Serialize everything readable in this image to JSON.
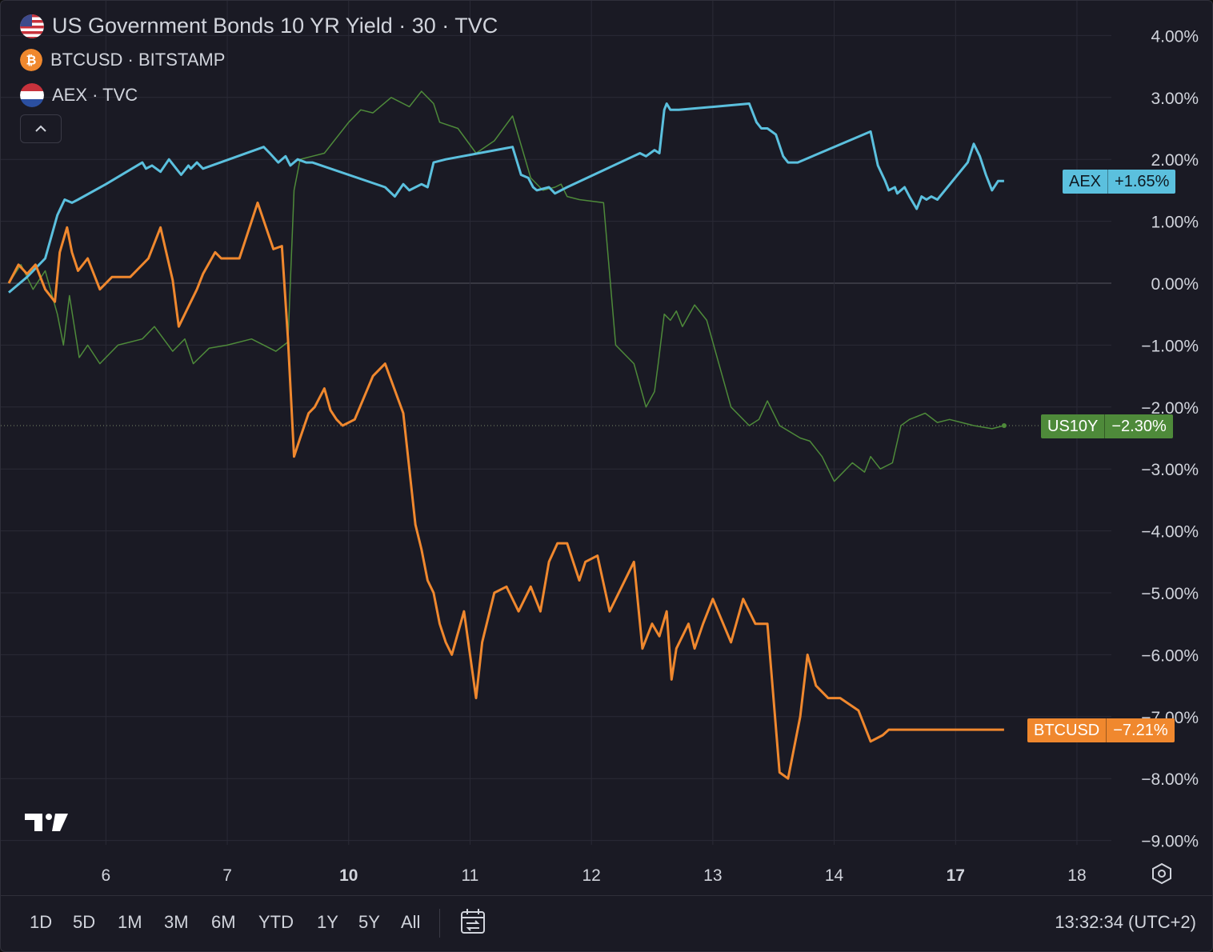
{
  "legend": [
    {
      "symbol": "US Government Bonds 10 YR Yield · 30 · TVC",
      "icon": "us-flag-icon"
    },
    {
      "symbol": "BTCUSD · BITSTAMP",
      "icon": "bitcoin-icon"
    },
    {
      "symbol": "AEX · TVC",
      "icon": "netherlands-flag-icon"
    }
  ],
  "badges": {
    "aex": {
      "name": "AEX",
      "value": "+1.65%"
    },
    "us10y": {
      "name": "US10Y",
      "value": "−2.30%"
    },
    "btc": {
      "name": "BTCUSD",
      "value": "−7.21%"
    }
  },
  "range_buttons": [
    "1D",
    "5D",
    "1M",
    "3M",
    "6M",
    "YTD",
    "1Y",
    "5Y",
    "All"
  ],
  "timestamp": "13:32:34 (UTC+2)",
  "colors": {
    "background": "#1a1a24",
    "aex": "#5bc0de",
    "us10y": "#4e8a3a",
    "btc": "#f0882e",
    "grid": "#2a2a36",
    "text": "#d1d4dc"
  },
  "chart_data": {
    "type": "line",
    "title": "US Government Bonds 10 YR Yield · 30 · TVC",
    "ylabel": "",
    "xlabel": "",
    "ylim": [
      -9.5,
      4.6
    ],
    "xlim": [
      5.2,
      18.3
    ],
    "grid": true,
    "y_ticks": [
      4,
      3,
      2,
      1,
      0,
      -1,
      -2,
      -3,
      -4,
      -5,
      -6,
      -7,
      -8,
      -9
    ],
    "y_tick_labels": [
      "4.00%",
      "3.00%",
      "2.00%",
      "1.00%",
      "0.00%",
      "−1.00%",
      "−2.00%",
      "−3.00%",
      "−4.00%",
      "−5.00%",
      "−6.00%",
      "−7.00%",
      "−8.00%",
      "−9.00%"
    ],
    "x_ticks": [
      {
        "x": 6,
        "label": "6",
        "bold": false
      },
      {
        "x": 7,
        "label": "7",
        "bold": false
      },
      {
        "x": 8,
        "label": "10",
        "bold": true
      },
      {
        "x": 9,
        "label": "11",
        "bold": false
      },
      {
        "x": 10,
        "label": "12",
        "bold": false
      },
      {
        "x": 11,
        "label": "13",
        "bold": false
      },
      {
        "x": 12,
        "label": "14",
        "bold": false
      },
      {
        "x": 13,
        "label": "17",
        "bold": true
      },
      {
        "x": 14,
        "label": "18",
        "bold": false
      }
    ],
    "series": [
      {
        "name": "AEX",
        "key": "aex",
        "last": 1.65,
        "x": [
          5.2,
          5.35,
          5.5,
          5.6,
          5.66,
          5.72,
          5.77,
          6.0,
          6.3,
          6.33,
          6.38,
          6.45,
          6.52,
          6.58,
          6.62,
          6.68,
          6.7,
          6.75,
          6.8,
          7.3,
          7.35,
          7.42,
          7.48,
          7.52,
          7.58,
          7.65,
          7.7,
          8.3,
          8.38,
          8.45,
          8.5,
          8.6,
          8.65,
          8.7,
          8.8,
          9.35,
          9.42,
          9.48,
          9.52,
          9.55,
          9.65,
          9.7,
          9.8,
          10.4,
          10.45,
          10.52,
          10.56,
          10.6,
          10.62,
          10.65,
          10.7,
          10.72,
          11.3,
          11.36,
          11.4,
          11.45,
          11.52,
          11.58,
          11.62,
          11.7,
          12.3,
          12.36,
          12.42,
          12.45,
          12.5,
          12.52,
          12.58,
          12.62,
          12.68,
          12.72,
          12.76,
          12.8,
          12.85,
          13.1,
          13.15,
          13.2,
          13.25,
          13.3,
          13.35,
          13.4
        ],
        "y": [
          -0.15,
          0.1,
          0.4,
          1.1,
          1.35,
          1.3,
          1.35,
          1.6,
          1.95,
          1.85,
          1.9,
          1.8,
          2.0,
          1.85,
          1.75,
          1.9,
          1.85,
          1.95,
          1.85,
          2.2,
          2.1,
          1.95,
          2.05,
          1.9,
          2.0,
          1.95,
          1.95,
          1.55,
          1.4,
          1.6,
          1.5,
          1.6,
          1.55,
          1.95,
          2.0,
          2.2,
          1.75,
          1.7,
          1.55,
          1.5,
          1.55,
          1.45,
          1.55,
          2.1,
          2.05,
          2.15,
          2.1,
          2.8,
          2.9,
          2.8,
          2.8,
          2.8,
          2.9,
          2.6,
          2.5,
          2.5,
          2.4,
          2.05,
          1.95,
          1.95,
          2.45,
          1.9,
          1.65,
          1.5,
          1.55,
          1.45,
          1.55,
          1.4,
          1.2,
          1.4,
          1.35,
          1.4,
          1.35,
          1.95,
          2.25,
          2.05,
          1.75,
          1.5,
          1.65,
          1.65
        ]
      },
      {
        "name": "US10Y",
        "key": "us10y",
        "last": -2.3,
        "x": [
          5.2,
          5.3,
          5.4,
          5.5,
          5.6,
          5.65,
          5.7,
          5.78,
          5.85,
          5.95,
          6.1,
          6.3,
          6.4,
          6.55,
          6.65,
          6.72,
          6.85,
          7.0,
          7.2,
          7.4,
          7.5,
          7.55,
          7.6,
          7.7,
          7.8,
          8.0,
          8.1,
          8.2,
          8.35,
          8.5,
          8.6,
          8.7,
          8.75,
          8.9,
          9.05,
          9.2,
          9.35,
          9.5,
          9.6,
          9.7,
          9.75,
          9.8,
          9.9,
          10.1,
          10.2,
          10.35,
          10.45,
          10.52,
          10.55,
          10.6,
          10.65,
          10.7,
          10.75,
          10.85,
          10.95,
          11.05,
          11.15,
          11.3,
          11.38,
          11.45,
          11.55,
          11.72,
          11.8,
          11.9,
          12.0,
          12.15,
          12.25,
          12.3,
          12.38,
          12.48,
          12.55,
          12.62,
          12.75,
          12.85,
          12.95,
          13.05,
          13.15,
          13.3,
          13.4
        ],
        "y": [
          0.0,
          0.3,
          -0.1,
          0.2,
          -0.5,
          -1.0,
          -0.2,
          -1.2,
          -1.0,
          -1.3,
          -1.0,
          -0.9,
          -0.7,
          -1.1,
          -0.9,
          -1.3,
          -1.05,
          -1.0,
          -0.9,
          -1.1,
          -0.95,
          1.5,
          2.0,
          2.05,
          2.1,
          2.6,
          2.8,
          2.75,
          3.0,
          2.85,
          3.1,
          2.9,
          2.6,
          2.5,
          2.1,
          2.3,
          2.7,
          1.7,
          1.5,
          1.55,
          1.6,
          1.4,
          1.35,
          1.3,
          -1.0,
          -1.3,
          -2.0,
          -1.75,
          -1.3,
          -0.5,
          -0.6,
          -0.45,
          -0.7,
          -0.35,
          -0.6,
          -1.3,
          -2.0,
          -2.3,
          -2.2,
          -1.9,
          -2.3,
          -2.5,
          -2.55,
          -2.8,
          -3.2,
          -2.9,
          -3.05,
          -2.8,
          -3.0,
          -2.9,
          -2.3,
          -2.2,
          -2.1,
          -2.25,
          -2.2,
          -2.25,
          -2.3,
          -2.35,
          -2.3
        ]
      },
      {
        "name": "BTCUSD",
        "key": "btc",
        "last": -7.21,
        "x": [
          5.2,
          5.28,
          5.35,
          5.42,
          5.5,
          5.58,
          5.62,
          5.68,
          5.72,
          5.77,
          5.85,
          5.95,
          6.05,
          6.2,
          6.35,
          6.45,
          6.55,
          6.6,
          6.7,
          6.75,
          6.8,
          6.9,
          6.95,
          7.1,
          7.25,
          7.38,
          7.45,
          7.5,
          7.55,
          7.6,
          7.67,
          7.72,
          7.8,
          7.85,
          7.9,
          7.95,
          8.05,
          8.2,
          8.3,
          8.45,
          8.55,
          8.6,
          8.65,
          8.7,
          8.75,
          8.8,
          8.85,
          8.95,
          9.05,
          9.1,
          9.2,
          9.3,
          9.4,
          9.5,
          9.58,
          9.65,
          9.72,
          9.8,
          9.9,
          9.95,
          10.05,
          10.15,
          10.25,
          10.35,
          10.42,
          10.5,
          10.56,
          10.62,
          10.66,
          10.7,
          10.75,
          10.8,
          10.85,
          10.92,
          11.0,
          11.15,
          11.25,
          11.35,
          11.45,
          11.55,
          11.62,
          11.72,
          11.78,
          11.85,
          11.95,
          12.05,
          12.2,
          12.3,
          12.4,
          12.45,
          12.5,
          12.55,
          12.6,
          12.65,
          12.7,
          12.75,
          12.8,
          12.85,
          12.95,
          13.05,
          13.15,
          13.25,
          13.3,
          13.35,
          13.4
        ],
        "y": [
          0.0,
          0.3,
          0.15,
          0.3,
          -0.1,
          -0.3,
          0.5,
          0.9,
          0.5,
          0.2,
          0.4,
          -0.1,
          0.1,
          0.1,
          0.4,
          0.9,
          0.05,
          -0.7,
          -0.3,
          -0.1,
          0.15,
          0.5,
          0.4,
          0.4,
          1.3,
          0.55,
          0.6,
          -0.9,
          -2.8,
          -2.5,
          -2.1,
          -2.0,
          -1.7,
          -2.05,
          -2.2,
          -2.3,
          -2.2,
          -1.5,
          -1.3,
          -2.1,
          -3.9,
          -4.3,
          -4.8,
          -5.0,
          -5.5,
          -5.8,
          -6.0,
          -5.3,
          -6.7,
          -5.8,
          -5.0,
          -4.9,
          -5.3,
          -4.9,
          -5.3,
          -4.5,
          -4.2,
          -4.2,
          -4.8,
          -4.5,
          -4.4,
          -5.3,
          -4.9,
          -4.5,
          -5.9,
          -5.5,
          -5.7,
          -5.3,
          -6.4,
          -5.9,
          -5.7,
          -5.5,
          -5.9,
          -5.5,
          -5.1,
          -5.8,
          -5.1,
          -5.5,
          -5.5,
          -7.9,
          -8.0,
          -7.0,
          -6.0,
          -6.5,
          -6.7,
          -6.7,
          -6.9,
          -7.4,
          -7.3,
          -7.21,
          -7.21,
          -7.21,
          -7.21,
          -7.21,
          -7.21,
          -7.21,
          -7.21,
          -7.21,
          -7.21,
          -7.21,
          -7.21,
          -7.21,
          -7.21,
          -7.21,
          -7.21
        ]
      }
    ]
  }
}
